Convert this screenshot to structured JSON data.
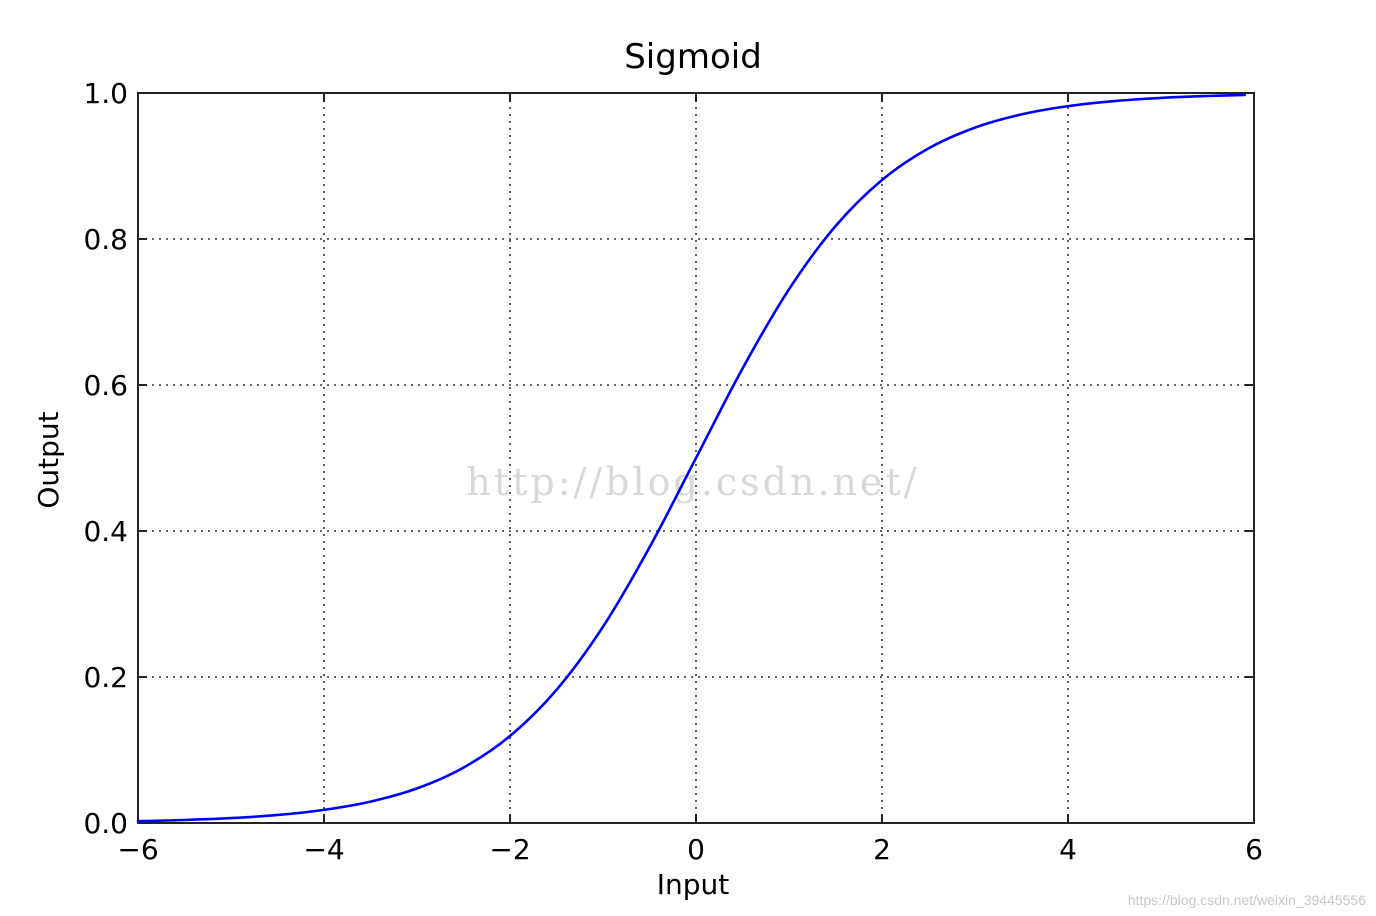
{
  "chart_data": {
    "type": "line",
    "title": "Sigmoid",
    "xlabel": "Input",
    "ylabel": "Output",
    "xlim": [
      -6,
      6
    ],
    "ylim": [
      0,
      1
    ],
    "x_ticks": [
      -6,
      -4,
      -2,
      0,
      2,
      4,
      6
    ],
    "x_tick_labels": [
      "−6",
      "−4",
      "−2",
      "0",
      "2",
      "4",
      "6"
    ],
    "y_ticks": [
      0,
      0.2,
      0.4,
      0.6,
      0.8,
      1.0
    ],
    "y_tick_labels": [
      "0.0",
      "0.2",
      "0.4",
      "0.6",
      "0.8",
      "1.0"
    ],
    "grid": true,
    "grid_style": "dotted",
    "series": [
      {
        "color": "#0000ff",
        "x": [
          -6,
          -5.5,
          -5,
          -4.5,
          -4,
          -3.5,
          -3,
          -2.5,
          -2,
          -1.5,
          -1,
          -0.5,
          0,
          0.5,
          1,
          1.5,
          2,
          2.5,
          3,
          3.5,
          4,
          4.5,
          5,
          5.5,
          5.9
        ],
        "y": [
          0.0025,
          0.0041,
          0.0067,
          0.011,
          0.018,
          0.0293,
          0.0474,
          0.0759,
          0.1192,
          0.1824,
          0.2689,
          0.3775,
          0.5,
          0.6225,
          0.7311,
          0.8176,
          0.8808,
          0.9241,
          0.9526,
          0.9707,
          0.982,
          0.989,
          0.9933,
          0.9959,
          0.9973
        ]
      }
    ]
  },
  "watermarks": {
    "center": "http://blog.csdn.net/",
    "credit": "https://blog.csdn.net/weixin_39445556"
  }
}
